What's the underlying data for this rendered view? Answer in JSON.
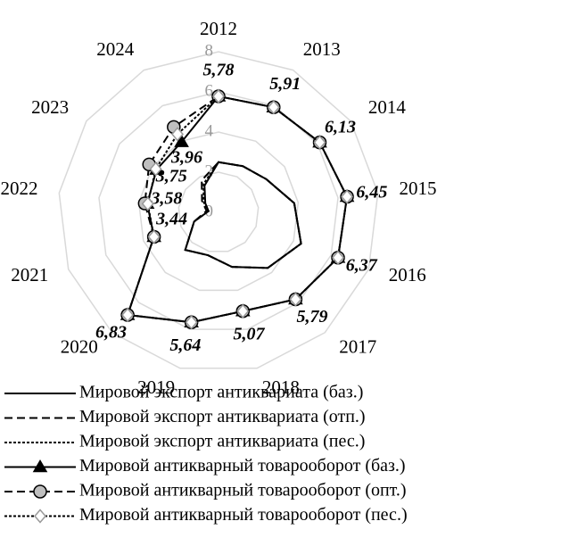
{
  "chart_data": {
    "type": "radar",
    "categories": [
      "2012",
      "2013",
      "2014",
      "2015",
      "2016",
      "2017",
      "2018",
      "2019",
      "2020",
      "2021",
      "2022",
      "2023",
      "2024"
    ],
    "ylim": [
      0,
      8
    ],
    "yticks": [
      0,
      2,
      4,
      6,
      8
    ],
    "grid": true,
    "series": [
      {
        "name": "Мировой экспорт антиквариата (баз.)",
        "color": "#000000",
        "dash": "solid",
        "marker": "none",
        "values": [
          2.5,
          2.6,
          2.9,
          3.8,
          4.4,
          3.7,
          2.8,
          2.2,
          2.5,
          1.3,
          0.5,
          0.8,
          1.5
        ]
      },
      {
        "name": "Мировой экспорт антиквариата (отп.)",
        "color": "#000000",
        "dash": "dashed",
        "marker": "none",
        "values": [
          2.5,
          2.6,
          2.9,
          3.8,
          4.4,
          3.7,
          2.8,
          2.2,
          2.5,
          1.3,
          0.6,
          1.0,
          1.8
        ]
      },
      {
        "name": "Мировой экспорт антиквариата (пес.)",
        "color": "#000000",
        "dash": "dotted",
        "marker": "none",
        "values": [
          2.5,
          2.6,
          2.9,
          3.8,
          4.4,
          3.7,
          2.8,
          2.2,
          2.5,
          1.3,
          0.5,
          0.9,
          1.6
        ]
      },
      {
        "name": "Мировой антикварный товарооборот (баз.)",
        "color": "#000000",
        "dash": "solid",
        "marker": "triangle",
        "values": [
          5.78,
          5.91,
          6.13,
          6.45,
          6.37,
          5.79,
          5.07,
          5.64,
          6.83,
          3.44,
          3.58,
          3.75,
          3.96
        ],
        "value_labels": [
          "5,78",
          "5,91",
          "6,13",
          "6,45",
          "6,37",
          "5,79",
          "5,07",
          "5,64",
          "6,83",
          "3,44",
          "3,58",
          "3,75",
          "3,96"
        ]
      },
      {
        "name": "Мировой антикварный товарооборот (опт.)",
        "color": "#000000",
        "dash": "dashed",
        "marker": "circle",
        "values": [
          5.78,
          5.91,
          6.13,
          6.45,
          6.37,
          5.79,
          5.07,
          5.64,
          6.83,
          3.44,
          3.7,
          4.2,
          4.8
        ]
      },
      {
        "name": "Мировой антикварный товарооборот (пес.)",
        "color": "#000000",
        "dash": "dotted",
        "marker": "diamond",
        "values": [
          5.78,
          5.91,
          6.13,
          6.45,
          6.37,
          5.79,
          5.07,
          5.64,
          6.83,
          3.44,
          3.55,
          3.8,
          4.4
        ]
      }
    ]
  }
}
